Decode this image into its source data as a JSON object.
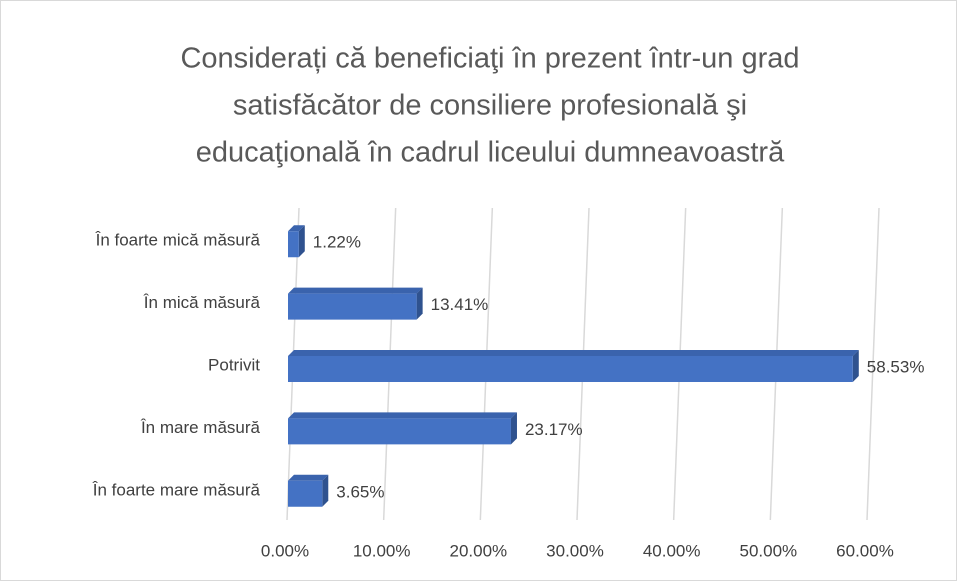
{
  "chart_data": {
    "type": "bar",
    "orientation": "horizontal",
    "title": [
      "Considerați că beneficiaţi în prezent într-un grad",
      "satisfăcător  de consiliere profesională şi",
      "educaţională în cadrul liceului dumneavoastră"
    ],
    "categories": [
      "În foarte mică măsură",
      "În mică măsură",
      "Potrivit",
      "În mare măsură",
      "În foarte mare măsură"
    ],
    "values": [
      1.22,
      13.41,
      58.53,
      23.17,
      3.65
    ],
    "value_labels": [
      "1.22%",
      "13.41%",
      "58.53%",
      "23.17%",
      "3.65%"
    ],
    "color": "#4472c4",
    "xlim": [
      0,
      60
    ],
    "xticks": [
      {
        "value": 0,
        "label": "0.00%"
      },
      {
        "value": 10,
        "label": "10.00%"
      },
      {
        "value": 20,
        "label": "20.00%"
      },
      {
        "value": 30,
        "label": "30.00%"
      },
      {
        "value": 40,
        "label": "40.00%"
      },
      {
        "value": 50,
        "label": "50.00%"
      },
      {
        "value": 60,
        "label": "60.00%"
      }
    ],
    "grid": true
  }
}
